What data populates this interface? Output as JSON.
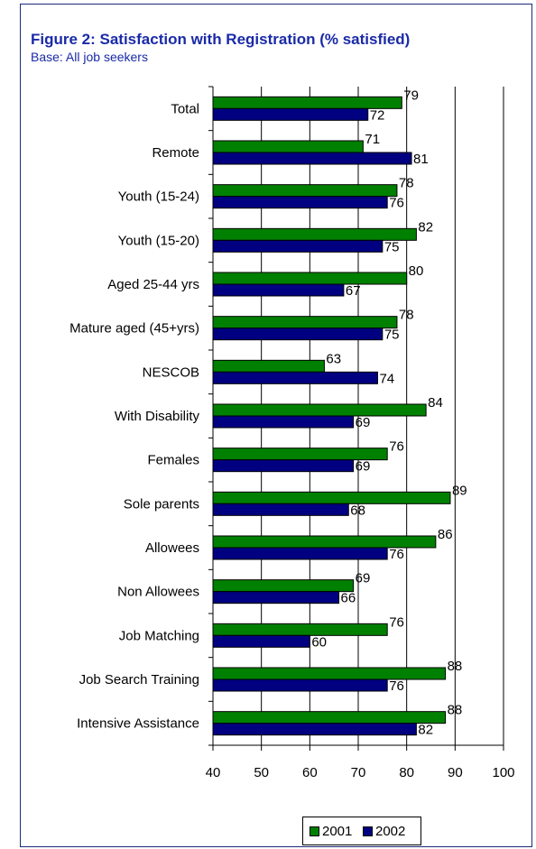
{
  "figure": {
    "title": "Figure 2: Satisfaction with Registration (% satisfied)",
    "subtitle": "Base: All job seekers"
  },
  "colors": {
    "series_2001": "#008000",
    "series_2002": "#000080"
  },
  "chart_data": {
    "type": "bar",
    "orientation": "horizontal",
    "title": "Figure 2: Satisfaction with Registration (% satisfied)",
    "subtitle": "Base: All job seekers",
    "categories": [
      "Total",
      "Remote",
      "Youth (15-24)",
      "Youth (15-20)",
      "Aged 25-44 yrs",
      "Mature aged (45+yrs)",
      "NESCOB",
      "With Disability",
      "Females",
      "Sole parents",
      "Allowees",
      "Non Allowees",
      "Job Matching",
      "Job Search Training",
      "Intensive Assistance"
    ],
    "series": [
      {
        "name": "2001",
        "values": [
          79,
          71,
          78,
          82,
          80,
          78,
          63,
          84,
          76,
          89,
          86,
          69,
          76,
          88,
          88
        ]
      },
      {
        "name": "2002",
        "values": [
          72,
          81,
          76,
          75,
          67,
          75,
          74,
          69,
          69,
          68,
          76,
          66,
          60,
          76,
          82
        ]
      }
    ],
    "xlim": [
      40,
      100
    ],
    "xticks": [
      "40",
      "50",
      "60",
      "70",
      "80",
      "90",
      "100"
    ],
    "xlabel": "",
    "ylabel": "",
    "grid": "vertical",
    "legend_position": "bottom"
  }
}
